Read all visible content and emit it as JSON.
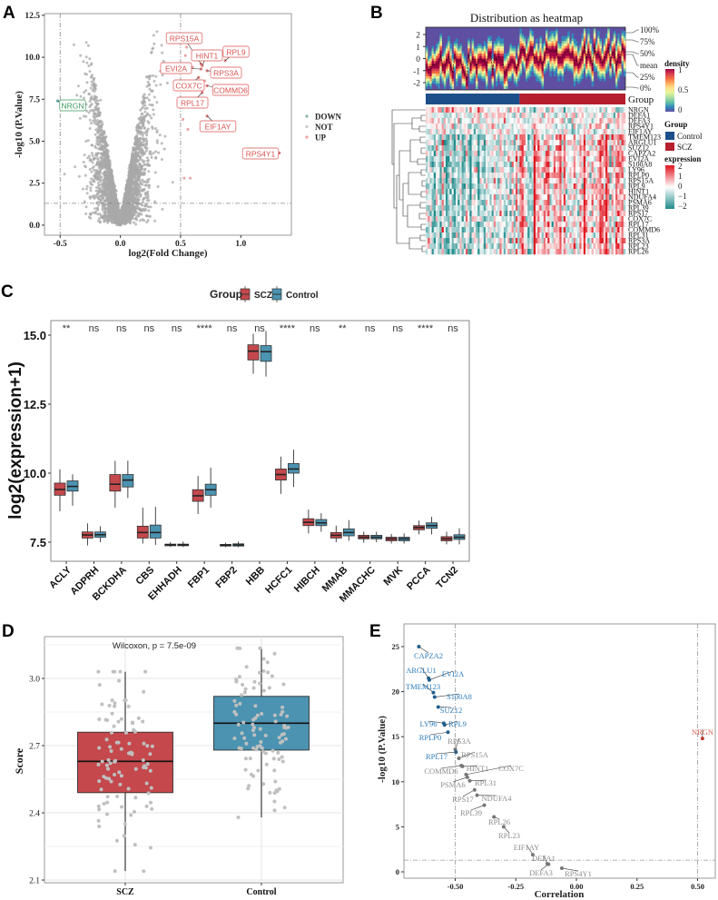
{
  "panel_labels": [
    "A",
    "B",
    "C",
    "D",
    "E"
  ],
  "chart_data": [
    {
      "type": "scatter",
      "xlabel": "log2(Fold Change)",
      "ylabel": "-log10 (P.Value)",
      "xlim": [
        -0.63,
        1.42
      ],
      "ylim": [
        -0.6,
        12.6
      ],
      "xticks": [
        {
          "v": -0.5,
          "t": "-0.5"
        },
        {
          "v": 0,
          "t": "0.0"
        },
        {
          "v": 0.5,
          "t": "0.5"
        },
        {
          "v": 1.0,
          "t": "1.0"
        }
      ],
      "yticks": [
        {
          "v": 0,
          "t": "0.0"
        },
        {
          "v": 2.5,
          "t": "2.5"
        },
        {
          "v": 5,
          "t": "5.0"
        },
        {
          "v": 7.5,
          "t": "7.5"
        },
        {
          "v": 10,
          "t": "10.0"
        },
        {
          "v": 12.5,
          "t": "12.5"
        }
      ],
      "thresholds": {
        "x": [
          -0.5,
          0.5
        ],
        "y": 1.3
      },
      "legend": [
        {
          "label": "DOWN",
          "color": "#8fb5a8"
        },
        {
          "label": "NOT",
          "color": "#c8c8c8"
        },
        {
          "label": "UP",
          "color": "#e8a0a0"
        }
      ],
      "background_color": "#a8a8a8",
      "labeled_points": [
        {
          "gene": "NRGN",
          "x": -0.52,
          "y": 7.4,
          "group": "DOWN"
        },
        {
          "gene": "RPS15A",
          "x": 0.67,
          "y": 9.6,
          "group": "UP"
        },
        {
          "gene": "HINT1",
          "x": 0.68,
          "y": 9.5,
          "group": "UP"
        },
        {
          "gene": "RPL9",
          "x": 0.87,
          "y": 9.8,
          "group": "UP"
        },
        {
          "gene": "EVI2A",
          "x": 0.67,
          "y": 9.3,
          "group": "UP"
        },
        {
          "gene": "RPS3A",
          "x": 0.72,
          "y": 9.2,
          "group": "UP"
        },
        {
          "gene": "COX7C",
          "x": 0.65,
          "y": 8.8,
          "group": "UP"
        },
        {
          "gene": "COMMD6",
          "x": 0.72,
          "y": 8.3,
          "group": "UP"
        },
        {
          "gene": "RPL17",
          "x": 0.68,
          "y": 7.9,
          "group": "UP"
        },
        {
          "gene": "EIF1AY",
          "x": 0.72,
          "y": 6.5,
          "group": "UP"
        },
        {
          "gene": "RPS4Y1",
          "x": 1.32,
          "y": 4.3,
          "group": "UP"
        }
      ],
      "other_up_points": [
        [
          0.52,
          6.3
        ],
        [
          0.56,
          5.7
        ],
        [
          0.53,
          2.8
        ],
        [
          0.58,
          2.8
        ],
        [
          0.54,
          10.1
        ],
        [
          0.6,
          9.4
        ],
        [
          0.55,
          10.6
        ],
        [
          0.7,
          8.6
        ]
      ]
    },
    {
      "type": "heatmap",
      "title": "Distribution as heatmap",
      "density_yticks": [
        "2",
        "1",
        "0",
        "-1",
        "-2"
      ],
      "quantile_labels": [
        "100%",
        "75%",
        "50%",
        "mean",
        "25%",
        "0%"
      ],
      "group_bar_label": "Group",
      "groups": [
        {
          "name": "Control",
          "color": "#1d4f8a",
          "fraction": 0.47
        },
        {
          "name": "SCZ",
          "color": "#b51f2e",
          "fraction": 0.53
        }
      ],
      "genes": [
        "NRGN",
        "DEFA1",
        "DEFA3",
        "RPS4Y1",
        "EIF1AY",
        "TMEM123",
        "ARGLU1",
        "SUZ12",
        "CAPZA2",
        "EVI2A",
        "S100A8",
        "LY96",
        "RPLP0",
        "RPS15A",
        "RPL9",
        "HINT1",
        "NDUFA4",
        "PSMA6",
        "RPL39",
        "RPS17",
        "COX7C",
        "RPL17",
        "COMMD6",
        "RPL31",
        "RPS3A",
        "RPL23",
        "RPL26"
      ],
      "legend_density": {
        "title": "density",
        "ticks": [
          "1",
          "0.5",
          "0"
        ]
      },
      "legend_group": {
        "title": "Group",
        "items": [
          "Control",
          "SCZ"
        ]
      },
      "legend_expression": {
        "title": "expression",
        "ticks": [
          "2",
          "1",
          "0",
          "−1",
          "−2"
        ]
      },
      "expression_colors": {
        "low": "#1e8a8a",
        "mid": "#ffffff",
        "high": "#e0141e"
      }
    },
    {
      "type": "box",
      "ylabel": "log2(expression+1)",
      "legend_title": "Group",
      "series_names": [
        "SCZ",
        "Control"
      ],
      "colors": {
        "SCZ": "#c4484c",
        "Control": "#4b93b1"
      },
      "ylim": [
        7.1,
        15.5
      ],
      "yticks": [
        {
          "v": 7.5,
          "t": "7.5"
        },
        {
          "v": 10,
          "t": "10.0"
        },
        {
          "v": 12.5,
          "t": "12.5"
        },
        {
          "v": 15,
          "t": "15.0"
        }
      ],
      "categories": [
        "ACLY",
        "ADPRH",
        "BCKDHA",
        "CBS",
        "EHHADH",
        "FBP1",
        "FBP2",
        "HBB",
        "HCFC1",
        "HIBCH",
        "MMAB",
        "MMACHC",
        "MVK",
        "PCCA",
        "TCN2"
      ],
      "significance": [
        "**",
        "ns",
        "ns",
        "ns",
        "ns",
        "****",
        "ns",
        "ns",
        "****",
        "ns",
        "**",
        "ns",
        "ns",
        "****",
        "ns"
      ],
      "box_stats_order": [
        "min",
        "q1",
        "median",
        "q3",
        "max"
      ],
      "SCZ": [
        [
          8.62,
          9.2,
          9.41,
          9.64,
          10.14
        ],
        [
          7.38,
          7.65,
          7.76,
          7.87,
          8.18
        ],
        [
          8.75,
          9.35,
          9.6,
          9.95,
          10.45
        ],
        [
          7.45,
          7.65,
          7.85,
          8.08,
          8.75
        ],
        [
          7.33,
          7.37,
          7.4,
          7.43,
          7.5
        ],
        [
          8.52,
          8.98,
          9.18,
          9.4,
          9.9
        ],
        [
          7.32,
          7.36,
          7.39,
          7.42,
          7.48
        ],
        [
          13.6,
          14.1,
          14.42,
          14.65,
          15.05
        ],
        [
          9.25,
          9.75,
          9.95,
          10.15,
          10.6
        ],
        [
          7.82,
          8.1,
          8.22,
          8.35,
          8.68
        ],
        [
          7.5,
          7.65,
          7.75,
          7.85,
          8.1
        ],
        [
          7.48,
          7.62,
          7.68,
          7.75,
          7.88
        ],
        [
          7.45,
          7.55,
          7.62,
          7.68,
          7.8
        ],
        [
          7.78,
          7.95,
          8.03,
          8.1,
          8.28
        ],
        [
          7.42,
          7.55,
          7.62,
          7.7,
          7.88
        ]
      ],
      "Control": [
        [
          8.82,
          9.35,
          9.52,
          9.72,
          9.96
        ],
        [
          7.5,
          7.68,
          7.77,
          7.87,
          8.08
        ],
        [
          9.1,
          9.5,
          9.75,
          9.95,
          10.45
        ],
        [
          7.4,
          7.65,
          7.85,
          8.12,
          8.78
        ],
        [
          7.33,
          7.37,
          7.4,
          7.43,
          7.52
        ],
        [
          8.75,
          9.2,
          9.4,
          9.6,
          10.2
        ],
        [
          7.32,
          7.36,
          7.4,
          7.44,
          7.52
        ],
        [
          13.5,
          14.05,
          14.4,
          14.62,
          15.15
        ],
        [
          9.5,
          10.0,
          10.15,
          10.35,
          10.85
        ],
        [
          7.88,
          8.1,
          8.2,
          8.32,
          8.55
        ],
        [
          7.55,
          7.73,
          7.85,
          7.98,
          8.3
        ],
        [
          7.5,
          7.62,
          7.68,
          7.75,
          7.88
        ],
        [
          7.45,
          7.55,
          7.62,
          7.68,
          7.82
        ],
        [
          7.78,
          8.0,
          8.1,
          8.2,
          8.42
        ],
        [
          7.42,
          7.6,
          7.68,
          7.77,
          8.0
        ]
      ]
    },
    {
      "type": "box",
      "annotation": "Wilcoxon, p = 7.5e-09",
      "ylabel": "Score",
      "categories": [
        "SCZ",
        "Control"
      ],
      "colors": {
        "SCZ": "#c4484c",
        "Control": "#4b93b1"
      },
      "point_color": "#c0c0c0",
      "ylim": [
        2.09,
        3.19
      ],
      "yticks": [
        {
          "v": 2.1,
          "t": "2.1"
        },
        {
          "v": 2.4,
          "t": "2.4"
        },
        {
          "v": 2.7,
          "t": "2.7"
        },
        {
          "v": 3.0,
          "t": "3.0"
        }
      ],
      "box_stats_order": [
        "min",
        "q1",
        "median",
        "q3",
        "max"
      ],
      "stats": [
        [
          2.14,
          2.49,
          2.63,
          2.76,
          3.03
        ],
        [
          2.38,
          2.68,
          2.8,
          2.92,
          3.135
        ]
      ]
    },
    {
      "type": "scatter",
      "xlabel": "Correlation",
      "ylabel": "-log10 (P.Value)",
      "xlim": [
        -0.71,
        0.57
      ],
      "ylim": [
        -0.7,
        27.3
      ],
      "xticks": [
        {
          "v": -0.5,
          "t": "-0.50"
        },
        {
          "v": -0.25,
          "t": "-0.25"
        },
        {
          "v": 0,
          "t": "0.00"
        },
        {
          "v": 0.25,
          "t": "0.25"
        },
        {
          "v": 0.5,
          "t": "0.50"
        }
      ],
      "yticks": [
        {
          "v": 0,
          "t": "0"
        },
        {
          "v": 5,
          "t": "5"
        },
        {
          "v": 10,
          "t": "10"
        },
        {
          "v": 15,
          "t": "15"
        },
        {
          "v": 20,
          "t": "20"
        },
        {
          "v": 25,
          "t": "25"
        }
      ],
      "thresholds": {
        "x": [
          -0.5,
          0.5
        ],
        "y": 1.3
      },
      "colors": {
        "negative": "#2b7bba",
        "neutral": "#8c8c8c",
        "positive": "#d6604d"
      },
      "points": [
        {
          "gene": "CAPZA2",
          "x": -0.65,
          "y": 25.0,
          "c": "negative"
        },
        {
          "gene": "ARGLU1",
          "x": -0.61,
          "y": 21.5,
          "c": "negative"
        },
        {
          "gene": "EVI2A",
          "x": -0.607,
          "y": 21.3,
          "c": "negative"
        },
        {
          "gene": "TMEM123",
          "x": -0.59,
          "y": 19.9,
          "c": "negative"
        },
        {
          "gene": "S100A8",
          "x": -0.585,
          "y": 19.4,
          "c": "negative"
        },
        {
          "gene": "SUZ12",
          "x": -0.57,
          "y": 18.3,
          "c": "negative"
        },
        {
          "gene": "LY96",
          "x": -0.547,
          "y": 16.5,
          "c": "negative"
        },
        {
          "gene": "RPL9",
          "x": -0.544,
          "y": 16.3,
          "c": "negative"
        },
        {
          "gene": "RPLP0",
          "x": -0.53,
          "y": 15.5,
          "c": "negative"
        },
        {
          "gene": "RPS3A",
          "x": -0.5,
          "y": 13.6,
          "c": "neutral"
        },
        {
          "gene": "RPL17",
          "x": -0.497,
          "y": 13.3,
          "c": "negative"
        },
        {
          "gene": "RPS15A",
          "x": -0.485,
          "y": 12.6,
          "c": "neutral"
        },
        {
          "gene": "COMMD6",
          "x": -0.475,
          "y": 11.8,
          "c": "neutral"
        },
        {
          "gene": "HINT1",
          "x": -0.47,
          "y": 11.7,
          "c": "neutral"
        },
        {
          "gene": "COX7C",
          "x": -0.455,
          "y": 10.8,
          "c": "neutral"
        },
        {
          "gene": "PSMA6",
          "x": -0.45,
          "y": 10.5,
          "c": "neutral"
        },
        {
          "gene": "RPL31",
          "x": -0.44,
          "y": 10.1,
          "c": "neutral"
        },
        {
          "gene": "RPS17",
          "x": -0.42,
          "y": 9.1,
          "c": "neutral"
        },
        {
          "gene": "NDUFA4",
          "x": -0.41,
          "y": 8.5,
          "c": "neutral"
        },
        {
          "gene": "RPL39",
          "x": -0.38,
          "y": 7.4,
          "c": "neutral"
        },
        {
          "gene": "RPL26",
          "x": -0.34,
          "y": 6.1,
          "c": "neutral"
        },
        {
          "gene": "RPL23",
          "x": -0.3,
          "y": 5.0,
          "c": "neutral"
        },
        {
          "gene": "EIF1AY",
          "x": -0.18,
          "y": 1.9,
          "c": "neutral"
        },
        {
          "gene": "DEFA1",
          "x": -0.12,
          "y": 0.9,
          "c": "neutral"
        },
        {
          "gene": "DEFA3",
          "x": -0.115,
          "y": 0.85,
          "c": "neutral"
        },
        {
          "gene": "RPS4Y1",
          "x": -0.06,
          "y": 0.4,
          "c": "neutral"
        },
        {
          "gene": "NRGN",
          "x": 0.52,
          "y": 14.8,
          "c": "positive"
        }
      ]
    }
  ]
}
